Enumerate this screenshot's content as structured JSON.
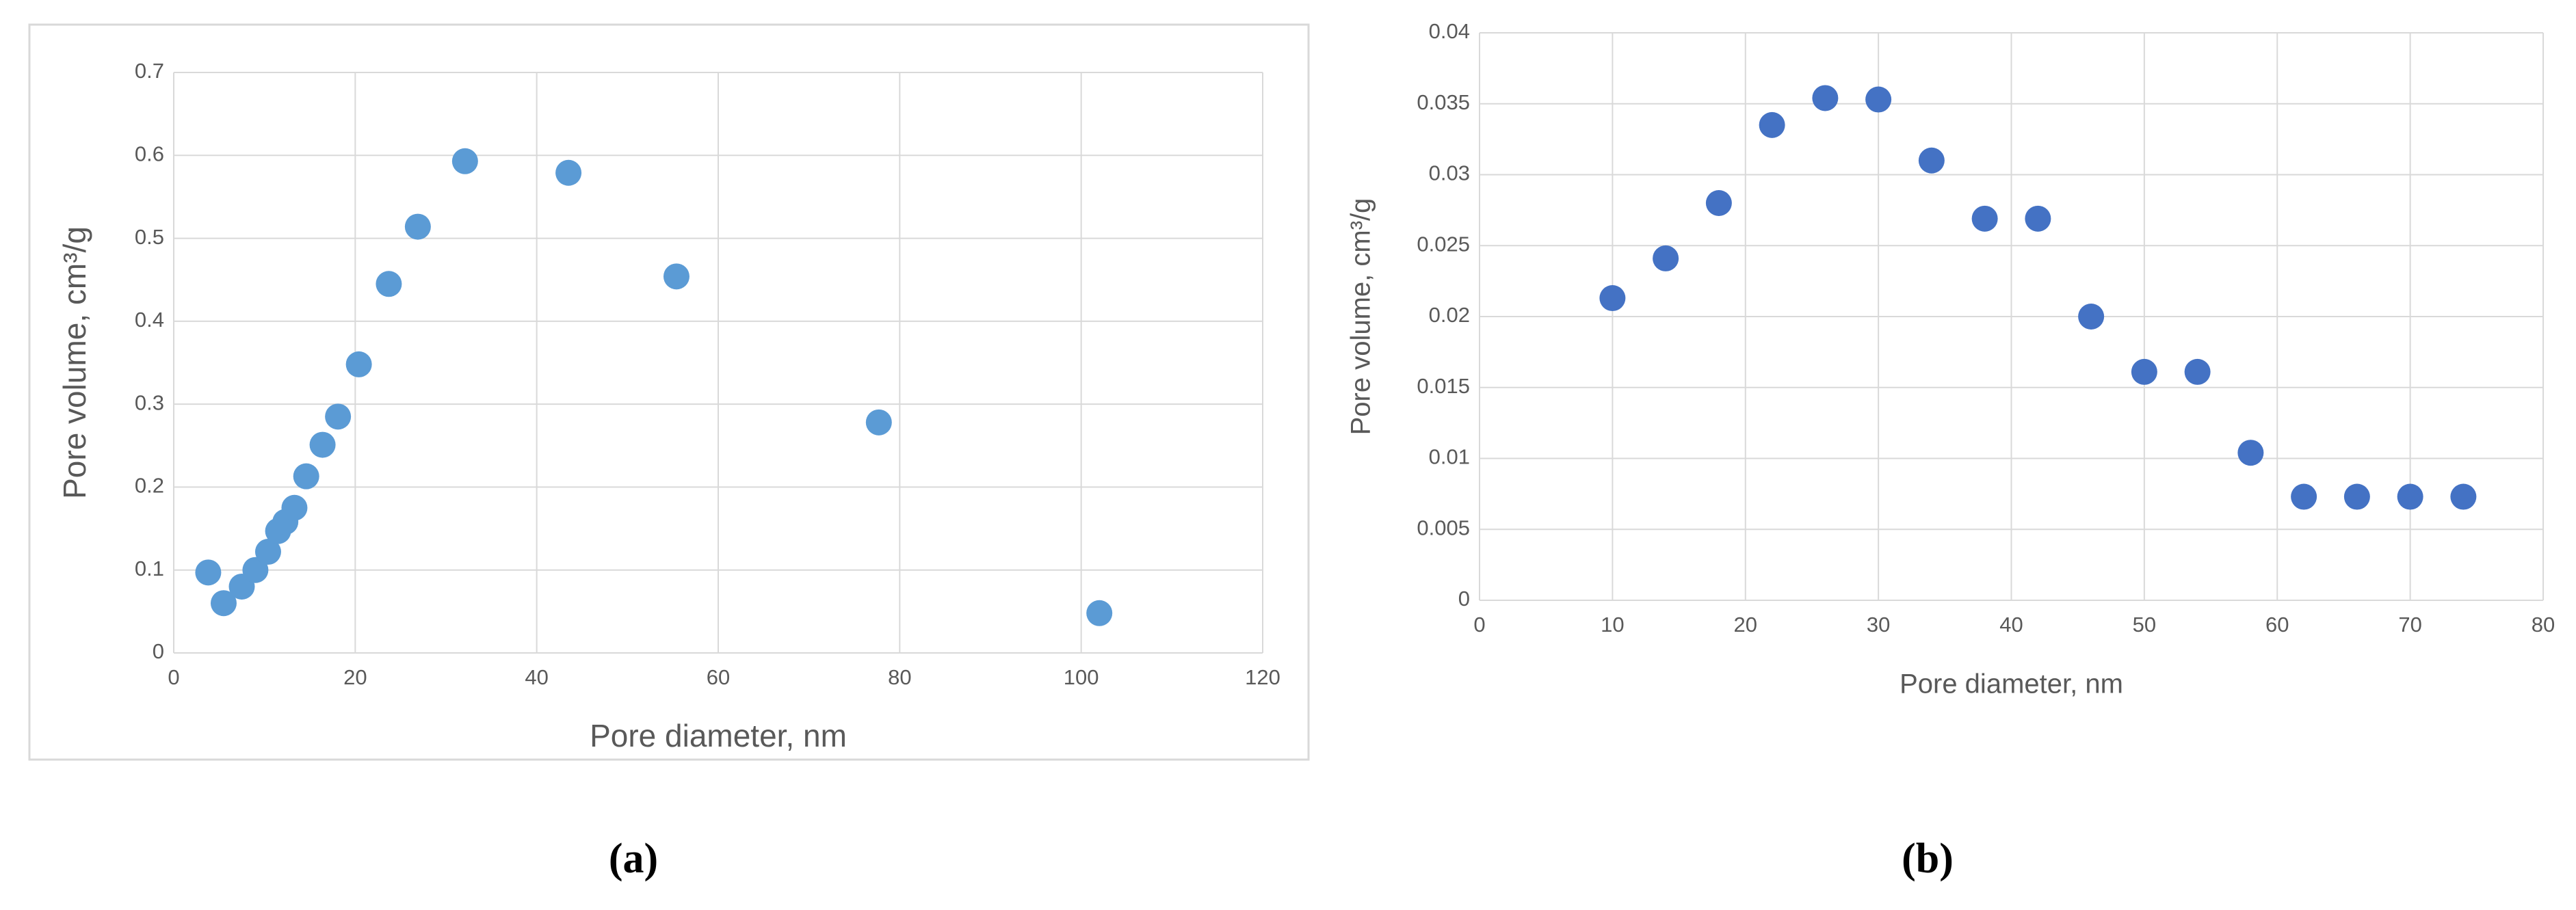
{
  "chart_data": [
    {
      "type": "scatter",
      "panel_label": "(a)",
      "xlabel": "Pore diameter, nm",
      "ylabel": "Pore volume, cm³/g",
      "color": "#5b9bd5",
      "grid": true,
      "x": [
        3.8,
        5.5,
        7.5,
        9,
        10.4,
        11.5,
        12.3,
        13.3,
        14.6,
        16.4,
        18.1,
        20.4,
        23.7,
        26.9,
        32.1,
        43.5,
        55.4,
        77.7,
        102
      ],
      "values": [
        0.097,
        0.06,
        0.08,
        0.1,
        0.122,
        0.147,
        0.158,
        0.175,
        0.213,
        0.251,
        0.285,
        0.348,
        0.445,
        0.514,
        0.593,
        0.579,
        0.454,
        0.278,
        0.048
      ],
      "xlim": [
        0,
        120
      ],
      "xticks": [
        0,
        20,
        40,
        60,
        80,
        100,
        120
      ],
      "ylim": [
        0,
        0.7
      ],
      "yticks": [
        0,
        0.1,
        0.2,
        0.3,
        0.4,
        0.5,
        0.6,
        0.7
      ]
    },
    {
      "type": "scatter",
      "panel_label": "(b)",
      "xlabel": "Pore diameter, nm",
      "ylabel": "Pore volume, cm³/g",
      "color": "#4472c4",
      "grid": true,
      "x": [
        10,
        14,
        18,
        22,
        26,
        30,
        34,
        38,
        42,
        46,
        50,
        54,
        58,
        62,
        66,
        70,
        74
      ],
      "values": [
        0.0213,
        0.0241,
        0.028,
        0.0335,
        0.0354,
        0.0353,
        0.031,
        0.0269,
        0.0269,
        0.02,
        0.0161,
        0.0161,
        0.0104,
        0.0073,
        0.0073,
        0.0073,
        0.0073
      ],
      "xlim": [
        0,
        80
      ],
      "xticks": [
        0,
        10,
        20,
        30,
        40,
        50,
        60,
        70,
        80
      ],
      "ylim": [
        0,
        0.04
      ],
      "yticks": [
        0,
        0.005,
        0.01,
        0.015,
        0.02,
        0.025,
        0.03,
        0.035,
        0.04
      ]
    }
  ]
}
